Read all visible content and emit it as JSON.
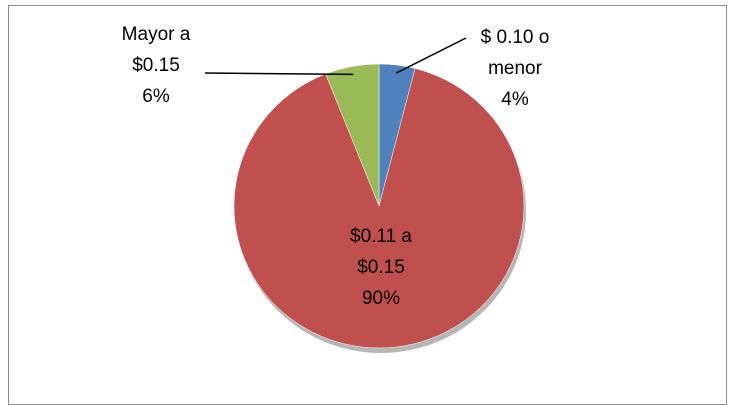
{
  "chart_data": {
    "type": "pie",
    "categories": [
      "$ 0.10 o menor",
      "$0.11 a $0.15",
      "Mayor a $0.15"
    ],
    "values": [
      4,
      90,
      6
    ],
    "value_labels": [
      "4%",
      "90%",
      "6%"
    ],
    "colors": [
      "#4f81bd",
      "#c0504d",
      "#9bbb59"
    ]
  }
}
